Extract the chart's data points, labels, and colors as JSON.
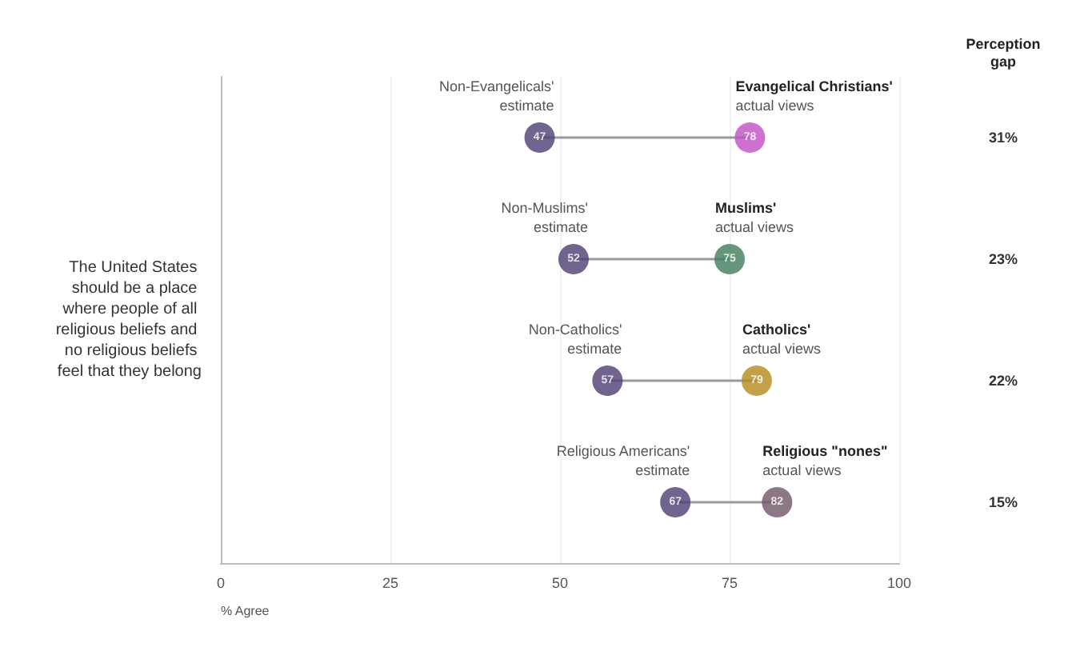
{
  "chart_data": {
    "type": "scatter",
    "orientation": "horizontal",
    "categories": [
      null,
      null,
      null,
      null
    ],
    "ylabel": "The United States should be a place where people of all religious beliefs and no religious beliefs feel that they belong",
    "xlabel": "% Agree",
    "xlim": [
      0,
      100
    ],
    "xticks": [
      0,
      25,
      50,
      75,
      100
    ],
    "grid": "x",
    "data_labels": true,
    "marker": "circle",
    "series": [
      {
        "color": "#4e3d72",
        "values": [
          47,
          52,
          57,
          67
        ]
      },
      {
        "colors": [
          "#c04fc6",
          "#3f7d5c",
          "#b48a1c",
          "#6e5566"
        ],
        "values": [
          78,
          75,
          79,
          82
        ]
      }
    ],
    "annotations": [
      "Non-Evangelicals'\nestimate",
      "Evangelical Christians'\nactual views",
      "Non-Muslims'\nestimate",
      "Muslims'\nactual views",
      "Non-Catholics'\nestimate",
      "Catholics'\nactual views",
      "Religious Americans'\nestimate",
      "Religious \"nones\"\nactual views",
      "Perception\ngap",
      "31%",
      "23%",
      "22%",
      "15%"
    ]
  }
}
